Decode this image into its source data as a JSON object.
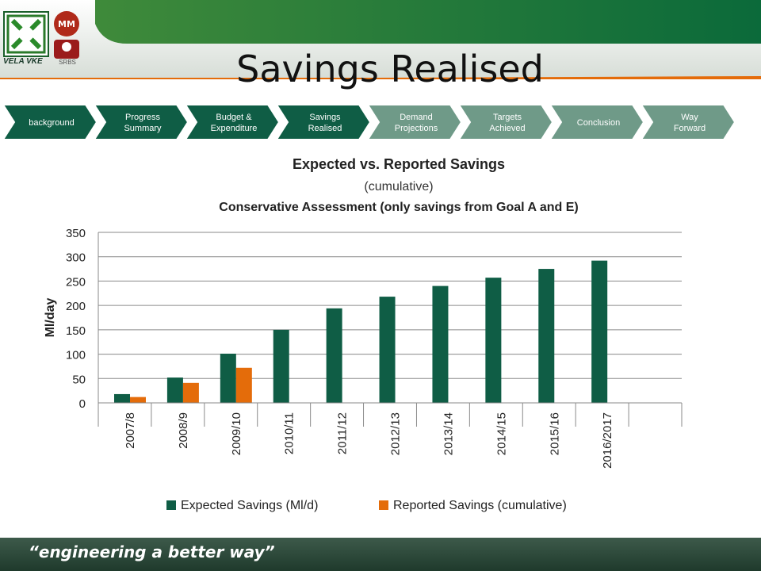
{
  "header": {
    "title": "Savings Realised",
    "logo_left_text": "VELA VKE",
    "logo_right_text": "SRBS"
  },
  "nav": {
    "items": [
      {
        "label": "background",
        "active": true
      },
      {
        "label": "Progress Summary",
        "active": true
      },
      {
        "label": "Budget & Expenditure",
        "active": true
      },
      {
        "label": "Savings Realised",
        "active": true
      },
      {
        "label": "Demand Projections",
        "active": false
      },
      {
        "label": "Targets Achieved",
        "active": false
      },
      {
        "label": "Conclusion",
        "active": false
      },
      {
        "label": "Way Forward",
        "active": false
      }
    ]
  },
  "colors": {
    "dark_green": "#0f5d45",
    "light_green": "#6f9a88",
    "orange": "#e46c0a",
    "header_green": "#0b6a3a",
    "footer": "#2c4a3a"
  },
  "chart_data": {
    "type": "bar",
    "title": "Expected vs. Reported Savings",
    "subtitle": "(cumulative)",
    "subtitle2": "Conservative Assessment   (only savings from Goal A and E)",
    "xlabel": "",
    "ylabel": "Ml/day",
    "ylim": [
      0,
      350
    ],
    "yticks": [
      0,
      50,
      100,
      150,
      200,
      250,
      300,
      350
    ],
    "grid": true,
    "legend": "bottom",
    "categories": [
      "2007/8",
      "2008/9",
      "2009/10",
      "2010/11",
      "2011/12",
      "2012/13",
      "2013/14",
      "2014/15",
      "2015/16",
      "2016/2017",
      ""
    ],
    "series": [
      {
        "name": "Expected Savings (Ml/d)",
        "color": "#0f5d45",
        "values": [
          18,
          52,
          101,
          150,
          194,
          218,
          240,
          257,
          275,
          292,
          null
        ]
      },
      {
        "name": "Reported Savings (cumulative)",
        "color": "#e46c0a",
        "values": [
          12,
          41,
          72,
          null,
          null,
          null,
          null,
          null,
          null,
          null,
          null
        ]
      }
    ]
  },
  "footer": {
    "slogan": "“engineering a better way”"
  }
}
